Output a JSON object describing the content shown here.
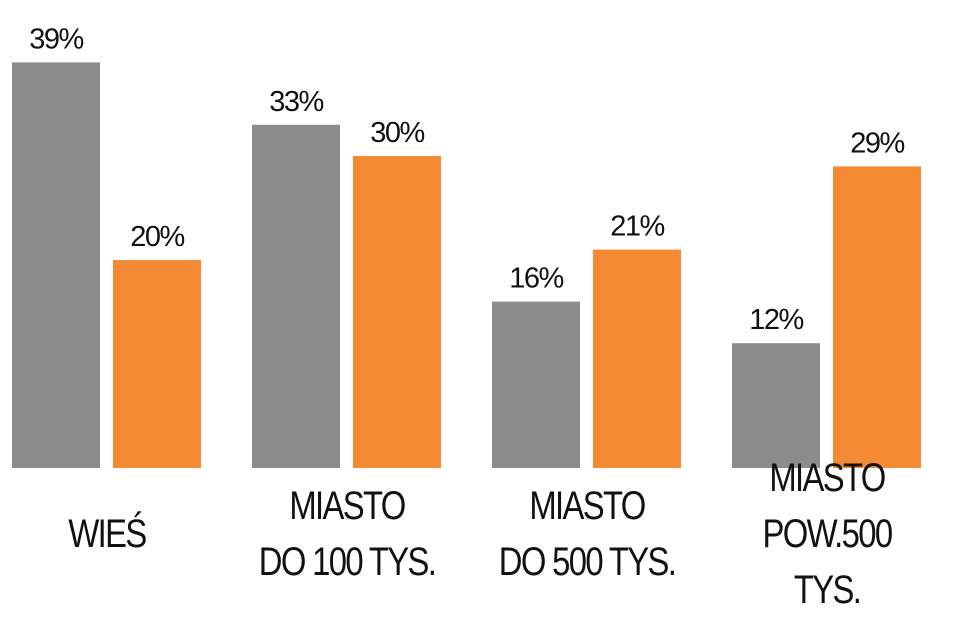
{
  "chart_data": {
    "type": "bar",
    "categories": [
      "WIEŚ",
      "MIASTO\nDO 100 TYS.",
      "MIASTO\nDO 500 TYS.",
      "MIASTO\nPOW.500 TYS."
    ],
    "series": [
      {
        "color": "#8c8c8c",
        "values": [
          39,
          33,
          16,
          12
        ],
        "value_labels": [
          "39%",
          "33%",
          "16%",
          "12%"
        ]
      },
      {
        "color": "#f58a35",
        "values": [
          20,
          30,
          21,
          29
        ],
        "value_labels": [
          "20%",
          "30%",
          "21%",
          "29%"
        ]
      }
    ],
    "ylim": [
      0,
      40
    ]
  }
}
